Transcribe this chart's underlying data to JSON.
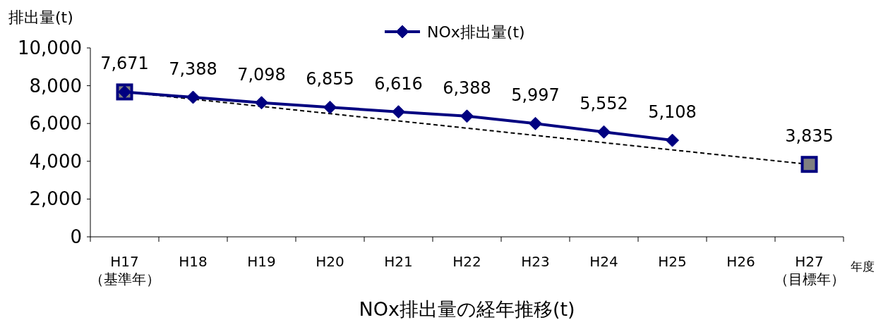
{
  "chart_data": {
    "type": "line",
    "title": "NOx排出量の経年推移(t)",
    "ylabel": "排出量(t)",
    "xlabel": "年度",
    "categories": [
      "H17\n（基準年）",
      "H18",
      "H19",
      "H20",
      "H21",
      "H22",
      "H23",
      "H24",
      "H25",
      "H26",
      "H27\n（目標年）"
    ],
    "series": [
      {
        "name": "NOx排出量(t)",
        "color": "#000080",
        "marker": "diamond",
        "line_style": "solid",
        "values": [
          7671,
          7388,
          7098,
          6855,
          6616,
          6388,
          5997,
          5552,
          5108,
          null,
          null
        ],
        "value_labels": [
          "7,671",
          "7,388",
          "7,098",
          "6,855",
          "6,616",
          "6,388",
          "5,997",
          "5,552",
          "5,108",
          null,
          null
        ]
      },
      {
        "type": "line",
        "color": "#000000",
        "marker": "square",
        "line_style": "dashed",
        "x": [
          "H17\n（基準年）",
          "H27\n（目標年）"
        ],
        "values": [
          7671,
          3835
        ],
        "value_labels": [
          null,
          "3,835"
        ]
      }
    ],
    "ylim": [
      0,
      10000
    ],
    "yticks": [
      {
        "value": 0,
        "label": "0"
      },
      {
        "value": 2000,
        "label": "2,000"
      },
      {
        "value": 4000,
        "label": "4,000"
      },
      {
        "value": 6000,
        "label": "6,000"
      },
      {
        "value": 8000,
        "label": "8,000"
      },
      {
        "value": 10000,
        "label": "10,000"
      }
    ],
    "legend": "top",
    "grid": false
  }
}
